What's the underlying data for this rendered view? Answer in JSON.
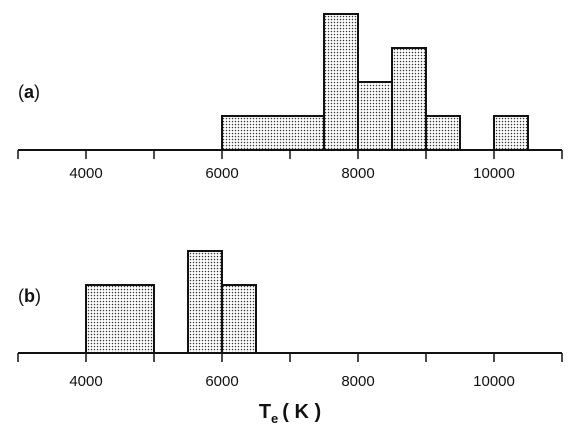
{
  "chart_data": [
    {
      "type": "histogram",
      "panel_label": {
        "open": "(",
        "letter": "a",
        "close": ")"
      },
      "bin_edges": [
        6000,
        7500,
        8000,
        8500,
        9000,
        9500,
        10000,
        10500
      ],
      "counts": [
        1,
        4,
        2,
        3,
        1,
        0,
        1
      ],
      "xlim": [
        3000,
        11000
      ],
      "ylim": [
        0,
        4
      ],
      "xticks": [
        3000,
        4000,
        5000,
        6000,
        7000,
        8000,
        9000,
        10000,
        11000
      ],
      "xtick_labels": [
        "4000",
        "6000",
        "8000",
        "10000"
      ],
      "grid": false
    },
    {
      "type": "histogram",
      "panel_label": {
        "open": "(",
        "letter": "b",
        "close": ")"
      },
      "bin_edges": [
        4000,
        5000,
        5500,
        6000,
        6500
      ],
      "counts": [
        2,
        0,
        3,
        2
      ],
      "xlim": [
        3000,
        11000
      ],
      "ylim": [
        0,
        4
      ],
      "xticks": [
        3000,
        4000,
        5000,
        6000,
        7000,
        8000,
        9000,
        10000,
        11000
      ],
      "xtick_labels": [
        "4000",
        "6000",
        "8000",
        "10000"
      ],
      "grid": false
    }
  ],
  "xlabel": {
    "main": "T",
    "sub": "e",
    "units": "( K )"
  }
}
